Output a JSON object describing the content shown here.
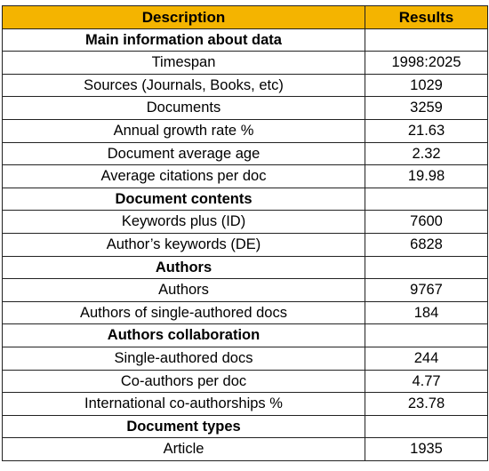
{
  "table": {
    "headers": [
      "Description",
      "Results"
    ],
    "header_color": "#f4b400",
    "rows": [
      {
        "type": "section",
        "description": "Main information about data",
        "result": ""
      },
      {
        "type": "item",
        "description": "Timespan",
        "result": "1998:2025"
      },
      {
        "type": "item",
        "description": "Sources (Journals, Books, etc)",
        "result": "1029"
      },
      {
        "type": "item",
        "description": "Documents",
        "result": "3259"
      },
      {
        "type": "item",
        "description": "Annual growth rate %",
        "result": "21.63"
      },
      {
        "type": "item",
        "description": "Document average age",
        "result": "2.32"
      },
      {
        "type": "item",
        "description": "Average citations per doc",
        "result": "19.98"
      },
      {
        "type": "section",
        "description": "Document contents",
        "result": ""
      },
      {
        "type": "item",
        "description": "Keywords plus (ID)",
        "result": "7600"
      },
      {
        "type": "item",
        "description": "Author’s keywords (DE)",
        "result": "6828"
      },
      {
        "type": "section",
        "description": "Authors",
        "result": ""
      },
      {
        "type": "item",
        "description": "Authors",
        "result": "9767"
      },
      {
        "type": "item",
        "description": "Authors of single-authored docs",
        "result": "184"
      },
      {
        "type": "section",
        "description": "Authors collaboration",
        "result": ""
      },
      {
        "type": "item",
        "description": "Single-authored docs",
        "result": "244"
      },
      {
        "type": "item",
        "description": "Co-authors per doc",
        "result": "4.77"
      },
      {
        "type": "item",
        "description": "International co-authorships %",
        "result": "23.78"
      },
      {
        "type": "section",
        "description": "Document types",
        "result": ""
      },
      {
        "type": "item",
        "description": "Article",
        "result": "1935"
      }
    ]
  }
}
